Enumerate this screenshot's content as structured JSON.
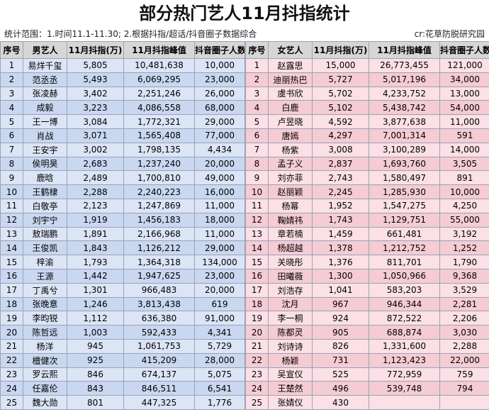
{
  "header": {
    "title": "部分热门艺人11月抖指统计",
    "scope": "统计范围：1.时间11.1-11.30; 2.根据抖指/超话/抖音圈子数据综合",
    "credit": "cr:花草防脱研究园"
  },
  "male": {
    "columns": [
      "序号",
      "男艺人",
      "11月抖指(万)",
      "11月抖指峰值",
      "抖音圈子人数"
    ],
    "rows": [
      [
        "1",
        "易烊千玺",
        "5,805",
        "10,481,638",
        "10,000"
      ],
      [
        "2",
        "范丞丞",
        "5,493",
        "6,069,295",
        "23,000"
      ],
      [
        "3",
        "张凌赫",
        "3,402",
        "2,251,246",
        "26,000"
      ],
      [
        "4",
        "成毅",
        "3,223",
        "4,086,558",
        "68,000"
      ],
      [
        "5",
        "王一博",
        "3,084",
        "1,772,321",
        "29,000"
      ],
      [
        "6",
        "肖战",
        "3,071",
        "1,565,408",
        "77,000"
      ],
      [
        "7",
        "王安宇",
        "3,002",
        "1,798,135",
        "4,434"
      ],
      [
        "8",
        "侯明昊",
        "2,683",
        "1,237,240",
        "20,000"
      ],
      [
        "9",
        "鹿晗",
        "2,489",
        "1,700,810",
        "49,000"
      ],
      [
        "10",
        "王鹤棣",
        "2,288",
        "2,240,223",
        "16,000"
      ],
      [
        "11",
        "白敬亭",
        "2,123",
        "1,247,869",
        "11,000"
      ],
      [
        "12",
        "刘宇宁",
        "1,919",
        "1,456,183",
        "18,000"
      ],
      [
        "13",
        "敖瑞鹏",
        "1,891",
        "2,166,968",
        "11,000"
      ],
      [
        "14",
        "王俊凯",
        "1,843",
        "1,126,212",
        "29,000"
      ],
      [
        "15",
        "梓渝",
        "1,793",
        "1,364,318",
        "134,000"
      ],
      [
        "16",
        "王源",
        "1,442",
        "1,947,625",
        "23,000"
      ],
      [
        "17",
        "丁禹兮",
        "1,301",
        "966,483",
        "20,000"
      ],
      [
        "18",
        "张晚意",
        "1,246",
        "3,813,438",
        "619"
      ],
      [
        "19",
        "李昀锐",
        "1,112",
        "636,380",
        "91,000"
      ],
      [
        "20",
        "陈哲远",
        "1,003",
        "592,433",
        "4,341"
      ],
      [
        "21",
        "杨洋",
        "945",
        "1,061,753",
        "5,729"
      ],
      [
        "22",
        "檀健次",
        "925",
        "415,209",
        "28,000"
      ],
      [
        "23",
        "罗云熙",
        "846",
        "674,137",
        "5,075"
      ],
      [
        "24",
        "任嘉伦",
        "843",
        "846,511",
        "6,541"
      ],
      [
        "25",
        "魏大勋",
        "801",
        "447,325",
        "1,776"
      ]
    ]
  },
  "female": {
    "columns": [
      "序号",
      "女艺人",
      "11月抖指(万)",
      "11月抖指峰值",
      "抖音圈子人数"
    ],
    "rows": [
      [
        "1",
        "赵露思",
        "15,000",
        "26,773,455",
        "121,000"
      ],
      [
        "2",
        "迪丽热巴",
        "5,727",
        "5,017,196",
        "34,000"
      ],
      [
        "3",
        "虞书欣",
        "5,702",
        "4,233,752",
        "13,000"
      ],
      [
        "4",
        "白鹿",
        "5,102",
        "5,438,742",
        "54,000"
      ],
      [
        "5",
        "卢昱晓",
        "4,592",
        "3,877,638",
        "11,000"
      ],
      [
        "6",
        "唐嫣",
        "4,297",
        "7,001,314",
        "591"
      ],
      [
        "7",
        "杨紫",
        "3,008",
        "3,100,289",
        "14,000"
      ],
      [
        "8",
        "孟子义",
        "2,837",
        "1,693,760",
        "3,505"
      ],
      [
        "9",
        "刘亦菲",
        "2,743",
        "1,580,497",
        "891"
      ],
      [
        "10",
        "赵丽颖",
        "2,245",
        "1,285,930",
        "10,000"
      ],
      [
        "11",
        "杨幂",
        "1,952",
        "1,547,275",
        "4,250"
      ],
      [
        "12",
        "鞠婧祎",
        "1,743",
        "1,129,751",
        "55,000"
      ],
      [
        "13",
        "章若楠",
        "1,459",
        "661,481",
        "3,192"
      ],
      [
        "14",
        "杨超越",
        "1,378",
        "1,212,752",
        "1,252"
      ],
      [
        "15",
        "关晓彤",
        "1,376",
        "811,701",
        "1,790"
      ],
      [
        "16",
        "田曦薇",
        "1,300",
        "1,050,966",
        "9,368"
      ],
      [
        "17",
        "刘浩存",
        "1,041",
        "583,203",
        "3,529"
      ],
      [
        "18",
        "沈月",
        "967",
        "946,344",
        "2,281"
      ],
      [
        "19",
        "李一桐",
        "924",
        "872,522",
        "2,206"
      ],
      [
        "20",
        "陈都灵",
        "905",
        "688,874",
        "3,030"
      ],
      [
        "21",
        "刘诗诗",
        "826",
        "1,331,600",
        "2,288"
      ],
      [
        "22",
        "杨颖",
        "731",
        "1,123,423",
        "22,000"
      ],
      [
        "23",
        "吴宣仪",
        "525",
        "772,959",
        "759"
      ],
      [
        "24",
        "王楚然",
        "496",
        "539,748",
        "794"
      ],
      [
        "25",
        "张婧仪",
        "430"
      ]
    ]
  }
}
